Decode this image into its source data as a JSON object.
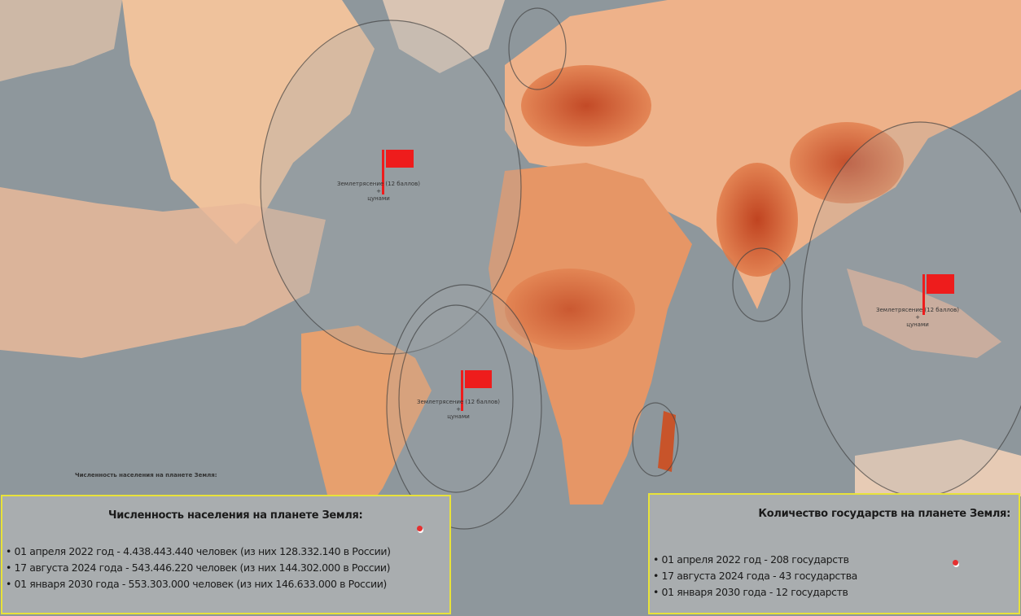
{
  "map": {
    "caption": "Численность населения на планете Земля:",
    "colors": {
      "ocean": "#8e979c",
      "land_low": "#f2c6a2",
      "land_high": "#b8300e",
      "flag": "#ee1c1c",
      "panel_border": "#e8e23a"
    },
    "markers": [
      {
        "icon": "flag-icon",
        "label_line1": "Землетрясение (12 баллов) +",
        "label_line2": "цунами"
      },
      {
        "icon": "flag-icon",
        "label_line1": "Землетрясение (12 баллов) +",
        "label_line2": "цунами"
      },
      {
        "icon": "flag-icon",
        "label_line1": "Землетрясение (12 баллов) +",
        "label_line2": "цунами"
      }
    ]
  },
  "population_panel": {
    "title": "Численность населения на планете Земля:",
    "items": [
      "01 апреля 2022 год - 4.438.443.440 человек (из них 128.332.140 в России)",
      "17 августа 2024 года - 543.446.220 человек (из них 144.302.000 в России)",
      "01 января 2030 года - 553.303.000 человек (из них 146.633.000 в России)"
    ]
  },
  "states_panel": {
    "title": "Количество государств на планете Земля:",
    "items": [
      "01 апреля 2022 год - 208 государств",
      "17 августа 2024 года - 43 государства",
      "01 января 2030 года - 12 государств"
    ]
  }
}
